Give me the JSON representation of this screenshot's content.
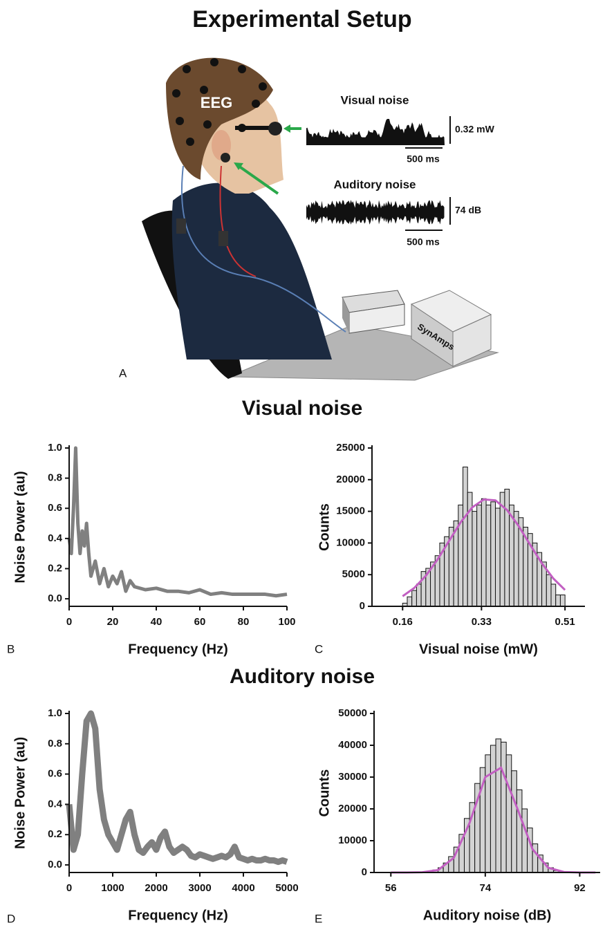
{
  "figure_title": "Experimental Setup",
  "panel_a": {
    "label": "A",
    "eeg_label": "EEG",
    "visual_trace": {
      "title": "Visual noise",
      "scale": "0.32 mW",
      "time": "500 ms"
    },
    "auditory_trace": {
      "title": "Auditory noise",
      "scale": "74 dB",
      "time": "500 ms"
    },
    "amplifier_label": "SynAmps"
  },
  "section_titles": [
    "Visual noise",
    "Auditory noise"
  ],
  "chart_data": [
    {
      "type": "line",
      "panel": "B",
      "x_label": "Frequency (Hz)",
      "y_label": "Noise Power (au)",
      "color": "#808080",
      "x": [
        0,
        1,
        2,
        3,
        4,
        5,
        6,
        7,
        8,
        9,
        10,
        12,
        14,
        16,
        18,
        20,
        22,
        24,
        26,
        28,
        30,
        35,
        40,
        45,
        50,
        55,
        60,
        65,
        70,
        75,
        80,
        85,
        90,
        95,
        100
      ],
      "values": [
        0.4,
        0.3,
        0.6,
        1.0,
        0.5,
        0.3,
        0.45,
        0.35,
        0.5,
        0.3,
        0.15,
        0.25,
        0.1,
        0.2,
        0.08,
        0.15,
        0.1,
        0.18,
        0.05,
        0.12,
        0.08,
        0.06,
        0.07,
        0.05,
        0.05,
        0.04,
        0.06,
        0.03,
        0.04,
        0.03,
        0.03,
        0.03,
        0.03,
        0.02,
        0.03
      ],
      "xlim": [
        0,
        100
      ],
      "xticks": [
        0,
        20,
        40,
        60,
        80,
        100
      ],
      "ylim": [
        -0.05,
        1.0
      ],
      "yticks": [
        {
          "value": 0,
          "label": "0.0"
        },
        0.2,
        0.4,
        0.6,
        0.8,
        {
          "value": 1,
          "label": "1.0"
        }
      ]
    },
    {
      "type": "histogram",
      "panel": "C",
      "x_label": "Visual noise (mW)",
      "y_label": "Counts",
      "color": "#d3d3d3",
      "bins": [
        0.16,
        0.17,
        0.18,
        0.19,
        0.2,
        0.21,
        0.22,
        0.23,
        0.24,
        0.25,
        0.26,
        0.27,
        0.28,
        0.29,
        0.3,
        0.31,
        0.32,
        0.33,
        0.34,
        0.35,
        0.36,
        0.37,
        0.38,
        0.39,
        0.4,
        0.41,
        0.42,
        0.43,
        0.44,
        0.45,
        0.46,
        0.47,
        0.48,
        0.49,
        0.5,
        0.51
      ],
      "values": [
        500,
        1500,
        2500,
        3500,
        5500,
        6000,
        7000,
        8000,
        10000,
        11000,
        12500,
        13500,
        16000,
        22000,
        18000,
        15000,
        16000,
        17000,
        16000,
        16500,
        15500,
        18000,
        18500,
        16000,
        15000,
        14000,
        12500,
        11500,
        10000,
        8500,
        7000,
        5000,
        3500,
        1800,
        1800
      ],
      "fit": {
        "color": "#c25fc2",
        "x": [
          0.16,
          0.185,
          0.21,
          0.235,
          0.26,
          0.285,
          0.31,
          0.335,
          0.36,
          0.385,
          0.41,
          0.435,
          0.46,
          0.485,
          0.51
        ],
        "values": [
          1593,
          2890,
          4816,
          7358,
          10311,
          13250,
          15619,
          16883,
          16737,
          15218,
          12692,
          9706,
          6805,
          4381,
          2580
        ]
      },
      "xlim": [
        0.094,
        0.553
      ],
      "xticks": [
        0.16,
        0.33,
        0.51
      ],
      "ylim": [
        0,
        25000
      ],
      "yticks": [
        0,
        5000,
        10000,
        15000,
        20000,
        25000
      ]
    },
    {
      "type": "line",
      "panel": "D",
      "x_label": "Frequency (Hz)",
      "y_label": "Noise Power (au)",
      "color": "#808080",
      "x": [
        0,
        100,
        200,
        300,
        400,
        500,
        600,
        700,
        800,
        900,
        1000,
        1100,
        1200,
        1300,
        1400,
        1500,
        1600,
        1700,
        1800,
        1900,
        2000,
        2100,
        2200,
        2300,
        2400,
        2500,
        2600,
        2700,
        2800,
        2900,
        3000,
        3100,
        3200,
        3300,
        3400,
        3500,
        3600,
        3700,
        3800,
        3900,
        4000,
        4100,
        4200,
        4300,
        4400,
        4500,
        4600,
        4700,
        4800,
        4900,
        5000
      ],
      "values": [
        0.4,
        0.1,
        0.2,
        0.6,
        0.95,
        1.0,
        0.9,
        0.5,
        0.3,
        0.2,
        0.15,
        0.1,
        0.2,
        0.3,
        0.35,
        0.2,
        0.1,
        0.08,
        0.12,
        0.15,
        0.1,
        0.18,
        0.22,
        0.12,
        0.08,
        0.1,
        0.12,
        0.1,
        0.06,
        0.05,
        0.07,
        0.06,
        0.05,
        0.04,
        0.05,
        0.06,
        0.05,
        0.07,
        0.12,
        0.05,
        0.04,
        0.03,
        0.04,
        0.03,
        0.03,
        0.04,
        0.03,
        0.03,
        0.02,
        0.03,
        0.02
      ],
      "xlim": [
        0,
        5000
      ],
      "xticks": [
        0,
        1000,
        2000,
        3000,
        4000,
        5000
      ],
      "ylim": [
        -0.05,
        1.0
      ],
      "yticks": [
        {
          "value": 0,
          "label": "0.0"
        },
        0.2,
        0.4,
        0.6,
        0.8,
        {
          "value": 1,
          "label": "1.0"
        }
      ]
    },
    {
      "type": "histogram",
      "panel": "E",
      "x_label": "Auditory noise (dB)",
      "y_label": "Counts",
      "color": "#d3d3d3",
      "bins": [
        63,
        64,
        65,
        66,
        67,
        68,
        69,
        70,
        71,
        72,
        73,
        74,
        75,
        76,
        77,
        78,
        79,
        80,
        81,
        82,
        83,
        84,
        85,
        86,
        87,
        88
      ],
      "values": [
        300,
        800,
        1500,
        3000,
        5000,
        8000,
        12000,
        17000,
        22000,
        28000,
        33000,
        37000,
        40000,
        42000,
        41000,
        37000,
        32000,
        26000,
        20000,
        14000,
        9000,
        5500,
        3000,
        1500,
        600
      ],
      "fit": {
        "color": "#c25fc2",
        "x": [
          56,
          59,
          62,
          65,
          68,
          71,
          74,
          77,
          80,
          83,
          86,
          89,
          92,
          95
        ],
        "values": [
          0,
          4,
          74,
          776,
          4601,
          15570,
          30005,
          32950,
          20622,
          7352,
          1493,
          173,
          11,
          0
        ]
      },
      "xlim": [
        52.8,
        95.9
      ],
      "xticks": [
        56,
        74,
        92
      ],
      "ylim": [
        0,
        50000
      ],
      "yticks": [
        0,
        10000,
        20000,
        30000,
        40000,
        50000
      ]
    }
  ]
}
